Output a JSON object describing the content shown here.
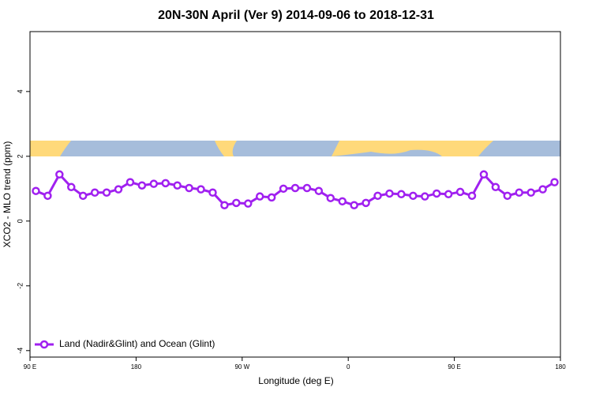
{
  "chart_data": {
    "type": "line",
    "title": "20N-30N April (Ver 9)   2014-09-06 to 2018-12-31",
    "x_label": "Longitude (deg E)",
    "y_label": "XCO2 - MLO trend (ppm)",
    "x": [
      95,
      105,
      115,
      125,
      135,
      145,
      155,
      165,
      175,
      185,
      195,
      205,
      215,
      225,
      235,
      245,
      255,
      265,
      275,
      285,
      295,
      305,
      315,
      325,
      335,
      345,
      355,
      365,
      375,
      385,
      395,
      405,
      415,
      425,
      435,
      445,
      455,
      465,
      475,
      485,
      495,
      505,
      515,
      525,
      535
    ],
    "series": [
      {
        "name": "Land (Nadir&Glint) and Ocean (Glint)",
        "color": "#a020f0",
        "values": [
          0.93,
          0.78,
          1.44,
          1.05,
          0.78,
          0.88,
          0.88,
          0.98,
          1.2,
          1.1,
          1.15,
          1.17,
          1.1,
          1.02,
          0.98,
          0.88,
          0.49,
          0.56,
          0.54,
          0.76,
          0.73,
          1.0,
          1.02,
          1.02,
          0.93,
          0.71,
          0.61,
          0.49,
          0.56,
          0.78,
          0.85,
          0.83,
          0.78,
          0.76,
          0.85,
          0.83,
          0.9,
          0.78,
          1.44,
          1.05,
          0.78,
          0.88,
          0.88,
          0.98,
          1.2
        ]
      }
    ],
    "xlim": [
      90,
      540
    ],
    "xticks": [
      {
        "value": 90,
        "label": "90 E"
      },
      180,
      {
        "value": 270,
        "label": "90 W"
      },
      {
        "value": 360,
        "label": "0"
      },
      {
        "value": 450,
        "label": "90 E"
      },
      {
        "value": 540,
        "label": "180"
      }
    ],
    "ylim": [
      -4.2,
      5.85
    ],
    "yticks": [
      -4,
      -2,
      0,
      2,
      4
    ],
    "legend": "bottom-left"
  }
}
